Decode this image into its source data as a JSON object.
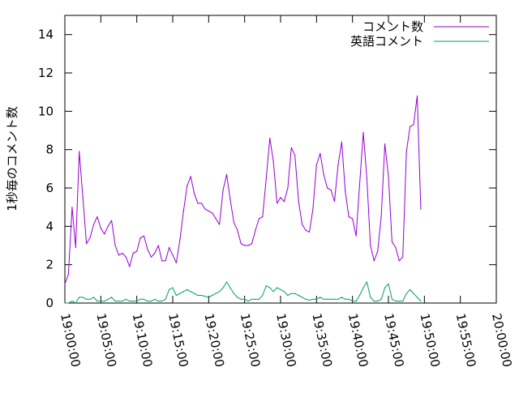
{
  "chart_data": {
    "type": "line",
    "ylabel": "1秒毎のコメント数",
    "xlabel": "",
    "title": "",
    "ylim": [
      0,
      15
    ],
    "xlim": [
      "19:00:00",
      "20:00:00"
    ],
    "y_ticks": [
      0,
      2,
      4,
      6,
      8,
      10,
      12,
      14
    ],
    "x_ticks": [
      "19:00:00",
      "19:05:00",
      "19:10:00",
      "19:15:00",
      "19:20:00",
      "19:25:00",
      "19:30:00",
      "19:35:00",
      "19:40:00",
      "19:45:00",
      "19:50:00",
      "19:55:00",
      "20:00:00"
    ],
    "x_tick_label_rotation": "vertical (rotated clockwise)",
    "grid": false,
    "legend_position": "top-right",
    "series": [
      {
        "name": "コメント数",
        "color": "#9400d3",
        "points": [
          [
            "19:00:00",
            1.0
          ],
          [
            "19:00:30",
            1.5
          ],
          [
            "19:01:00",
            5.0
          ],
          [
            "19:01:30",
            2.9
          ],
          [
            "19:02:00",
            7.9
          ],
          [
            "19:02:30",
            5.5
          ],
          [
            "19:03:00",
            3.1
          ],
          [
            "19:03:30",
            3.4
          ],
          [
            "19:04:00",
            4.1
          ],
          [
            "19:04:30",
            4.5
          ],
          [
            "19:05:00",
            3.9
          ],
          [
            "19:05:30",
            3.6
          ],
          [
            "19:06:00",
            4.0
          ],
          [
            "19:06:30",
            4.3
          ],
          [
            "19:07:00",
            3.0
          ],
          [
            "19:07:30",
            2.5
          ],
          [
            "19:08:00",
            2.6
          ],
          [
            "19:08:30",
            2.4
          ],
          [
            "19:09:00",
            1.9
          ],
          [
            "19:09:30",
            2.6
          ],
          [
            "19:10:00",
            2.7
          ],
          [
            "19:10:30",
            3.4
          ],
          [
            "19:11:00",
            3.5
          ],
          [
            "19:11:30",
            2.8
          ],
          [
            "19:12:00",
            2.4
          ],
          [
            "19:12:30",
            2.6
          ],
          [
            "19:13:00",
            3.0
          ],
          [
            "19:13:30",
            2.2
          ],
          [
            "19:14:00",
            2.2
          ],
          [
            "19:14:30",
            2.9
          ],
          [
            "19:15:00",
            2.5
          ],
          [
            "19:15:30",
            2.1
          ],
          [
            "19:16:00",
            3.3
          ],
          [
            "19:16:30",
            4.8
          ],
          [
            "19:17:00",
            6.1
          ],
          [
            "19:17:30",
            6.6
          ],
          [
            "19:18:00",
            5.7
          ],
          [
            "19:18:30",
            5.2
          ],
          [
            "19:19:00",
            5.2
          ],
          [
            "19:19:30",
            4.9
          ],
          [
            "19:20:00",
            4.8
          ],
          [
            "19:20:30",
            4.7
          ],
          [
            "19:21:00",
            4.4
          ],
          [
            "19:21:30",
            4.1
          ],
          [
            "19:22:00",
            5.9
          ],
          [
            "19:22:30",
            6.7
          ],
          [
            "19:23:00",
            5.4
          ],
          [
            "19:23:30",
            4.2
          ],
          [
            "19:24:00",
            3.8
          ],
          [
            "19:24:30",
            3.1
          ],
          [
            "19:25:00",
            3.0
          ],
          [
            "19:25:30",
            3.0
          ],
          [
            "19:26:00",
            3.1
          ],
          [
            "19:26:30",
            3.8
          ],
          [
            "19:27:00",
            4.4
          ],
          [
            "19:27:30",
            4.5
          ],
          [
            "19:28:00",
            6.5
          ],
          [
            "19:28:30",
            8.6
          ],
          [
            "19:29:00",
            7.4
          ],
          [
            "19:29:30",
            5.2
          ],
          [
            "19:30:00",
            5.5
          ],
          [
            "19:30:30",
            5.3
          ],
          [
            "19:31:00",
            6.0
          ],
          [
            "19:31:30",
            8.1
          ],
          [
            "19:32:00",
            7.7
          ],
          [
            "19:32:30",
            5.3
          ],
          [
            "19:33:00",
            4.1
          ],
          [
            "19:33:30",
            3.8
          ],
          [
            "19:34:00",
            3.7
          ],
          [
            "19:34:30",
            4.9
          ],
          [
            "19:35:00",
            7.2
          ],
          [
            "19:35:30",
            7.8
          ],
          [
            "19:36:00",
            6.7
          ],
          [
            "19:36:30",
            6.0
          ],
          [
            "19:37:00",
            5.9
          ],
          [
            "19:37:30",
            5.3
          ],
          [
            "19:38:00",
            7.2
          ],
          [
            "19:38:30",
            8.4
          ],
          [
            "19:39:00",
            5.8
          ],
          [
            "19:39:30",
            4.5
          ],
          [
            "19:40:00",
            4.4
          ],
          [
            "19:40:30",
            3.5
          ],
          [
            "19:41:00",
            6.2
          ],
          [
            "19:41:30",
            8.9
          ],
          [
            "19:42:00",
            6.5
          ],
          [
            "19:42:30",
            3.0
          ],
          [
            "19:43:00",
            2.2
          ],
          [
            "19:43:30",
            2.7
          ],
          [
            "19:44:00",
            4.5
          ],
          [
            "19:44:30",
            8.3
          ],
          [
            "19:45:00",
            6.6
          ],
          [
            "19:45:30",
            3.2
          ],
          [
            "19:46:00",
            2.9
          ],
          [
            "19:46:30",
            2.2
          ],
          [
            "19:47:00",
            2.4
          ],
          [
            "19:47:30",
            7.9
          ],
          [
            "19:48:00",
            9.2
          ],
          [
            "19:48:30",
            9.3
          ],
          [
            "19:49:00",
            10.8
          ],
          [
            "19:49:30",
            4.9
          ]
        ]
      },
      {
        "name": "英語コメント",
        "color": "#009e73",
        "points": [
          [
            "19:00:00",
            0.0
          ],
          [
            "19:00:30",
            0.0
          ],
          [
            "19:01:00",
            0.1
          ],
          [
            "19:01:30",
            0.0
          ],
          [
            "19:02:00",
            0.3
          ],
          [
            "19:02:30",
            0.3
          ],
          [
            "19:03:00",
            0.2
          ],
          [
            "19:03:30",
            0.2
          ],
          [
            "19:04:00",
            0.3
          ],
          [
            "19:04:30",
            0.1
          ],
          [
            "19:05:00",
            0.1
          ],
          [
            "19:05:30",
            0.1
          ],
          [
            "19:06:00",
            0.2
          ],
          [
            "19:06:30",
            0.3
          ],
          [
            "19:07:00",
            0.1
          ],
          [
            "19:07:30",
            0.1
          ],
          [
            "19:08:00",
            0.1
          ],
          [
            "19:08:30",
            0.2
          ],
          [
            "19:09:00",
            0.1
          ],
          [
            "19:09:30",
            0.1
          ],
          [
            "19:10:00",
            0.1
          ],
          [
            "19:10:30",
            0.2
          ],
          [
            "19:11:00",
            0.2
          ],
          [
            "19:11:30",
            0.1
          ],
          [
            "19:12:00",
            0.1
          ],
          [
            "19:12:30",
            0.2
          ],
          [
            "19:13:00",
            0.1
          ],
          [
            "19:13:30",
            0.1
          ],
          [
            "19:14:00",
            0.2
          ],
          [
            "19:14:30",
            0.7
          ],
          [
            "19:15:00",
            0.8
          ],
          [
            "19:15:30",
            0.4
          ],
          [
            "19:16:00",
            0.5
          ],
          [
            "19:16:30",
            0.6
          ],
          [
            "19:17:00",
            0.7
          ],
          [
            "19:17:30",
            0.6
          ],
          [
            "19:18:00",
            0.5
          ],
          [
            "19:18:30",
            0.4
          ],
          [
            "19:19:00",
            0.4
          ],
          [
            "19:19:30",
            0.35
          ],
          [
            "19:20:00",
            0.3
          ],
          [
            "19:20:30",
            0.4
          ],
          [
            "19:21:00",
            0.5
          ],
          [
            "19:21:30",
            0.6
          ],
          [
            "19:22:00",
            0.8
          ],
          [
            "19:22:30",
            1.1
          ],
          [
            "19:23:00",
            0.8
          ],
          [
            "19:23:30",
            0.5
          ],
          [
            "19:24:00",
            0.3
          ],
          [
            "19:24:30",
            0.2
          ],
          [
            "19:25:00",
            0.2
          ],
          [
            "19:25:30",
            0.1
          ],
          [
            "19:26:00",
            0.2
          ],
          [
            "19:26:30",
            0.2
          ],
          [
            "19:27:00",
            0.2
          ],
          [
            "19:27:30",
            0.4
          ],
          [
            "19:28:00",
            0.9
          ],
          [
            "19:28:30",
            0.8
          ],
          [
            "19:29:00",
            0.6
          ],
          [
            "19:29:30",
            0.8
          ],
          [
            "19:30:00",
            0.7
          ],
          [
            "19:30:30",
            0.6
          ],
          [
            "19:31:00",
            0.4
          ],
          [
            "19:31:30",
            0.5
          ],
          [
            "19:32:00",
            0.5
          ],
          [
            "19:32:30",
            0.4
          ],
          [
            "19:33:00",
            0.3
          ],
          [
            "19:33:30",
            0.2
          ],
          [
            "19:34:00",
            0.15
          ],
          [
            "19:34:30",
            0.2
          ],
          [
            "19:35:00",
            0.2
          ],
          [
            "19:35:30",
            0.3
          ],
          [
            "19:36:00",
            0.2
          ],
          [
            "19:36:30",
            0.2
          ],
          [
            "19:37:00",
            0.2
          ],
          [
            "19:37:30",
            0.2
          ],
          [
            "19:38:00",
            0.2
          ],
          [
            "19:38:30",
            0.3
          ],
          [
            "19:39:00",
            0.2
          ],
          [
            "19:39:30",
            0.2
          ],
          [
            "19:40:00",
            0.1
          ],
          [
            "19:40:30",
            0.1
          ],
          [
            "19:41:00",
            0.4
          ],
          [
            "19:41:30",
            0.8
          ],
          [
            "19:42:00",
            1.1
          ],
          [
            "19:42:30",
            0.3
          ],
          [
            "19:43:00",
            0.1
          ],
          [
            "19:43:30",
            0.1
          ],
          [
            "19:44:00",
            0.2
          ],
          [
            "19:44:30",
            0.8
          ],
          [
            "19:45:00",
            1.0
          ],
          [
            "19:45:30",
            0.2
          ],
          [
            "19:46:00",
            0.1
          ],
          [
            "19:46:30",
            0.1
          ],
          [
            "19:47:00",
            0.1
          ],
          [
            "19:47:30",
            0.5
          ],
          [
            "19:48:00",
            0.7
          ],
          [
            "19:48:30",
            0.5
          ],
          [
            "19:49:00",
            0.3
          ],
          [
            "19:49:30",
            0.1
          ]
        ]
      }
    ]
  }
}
